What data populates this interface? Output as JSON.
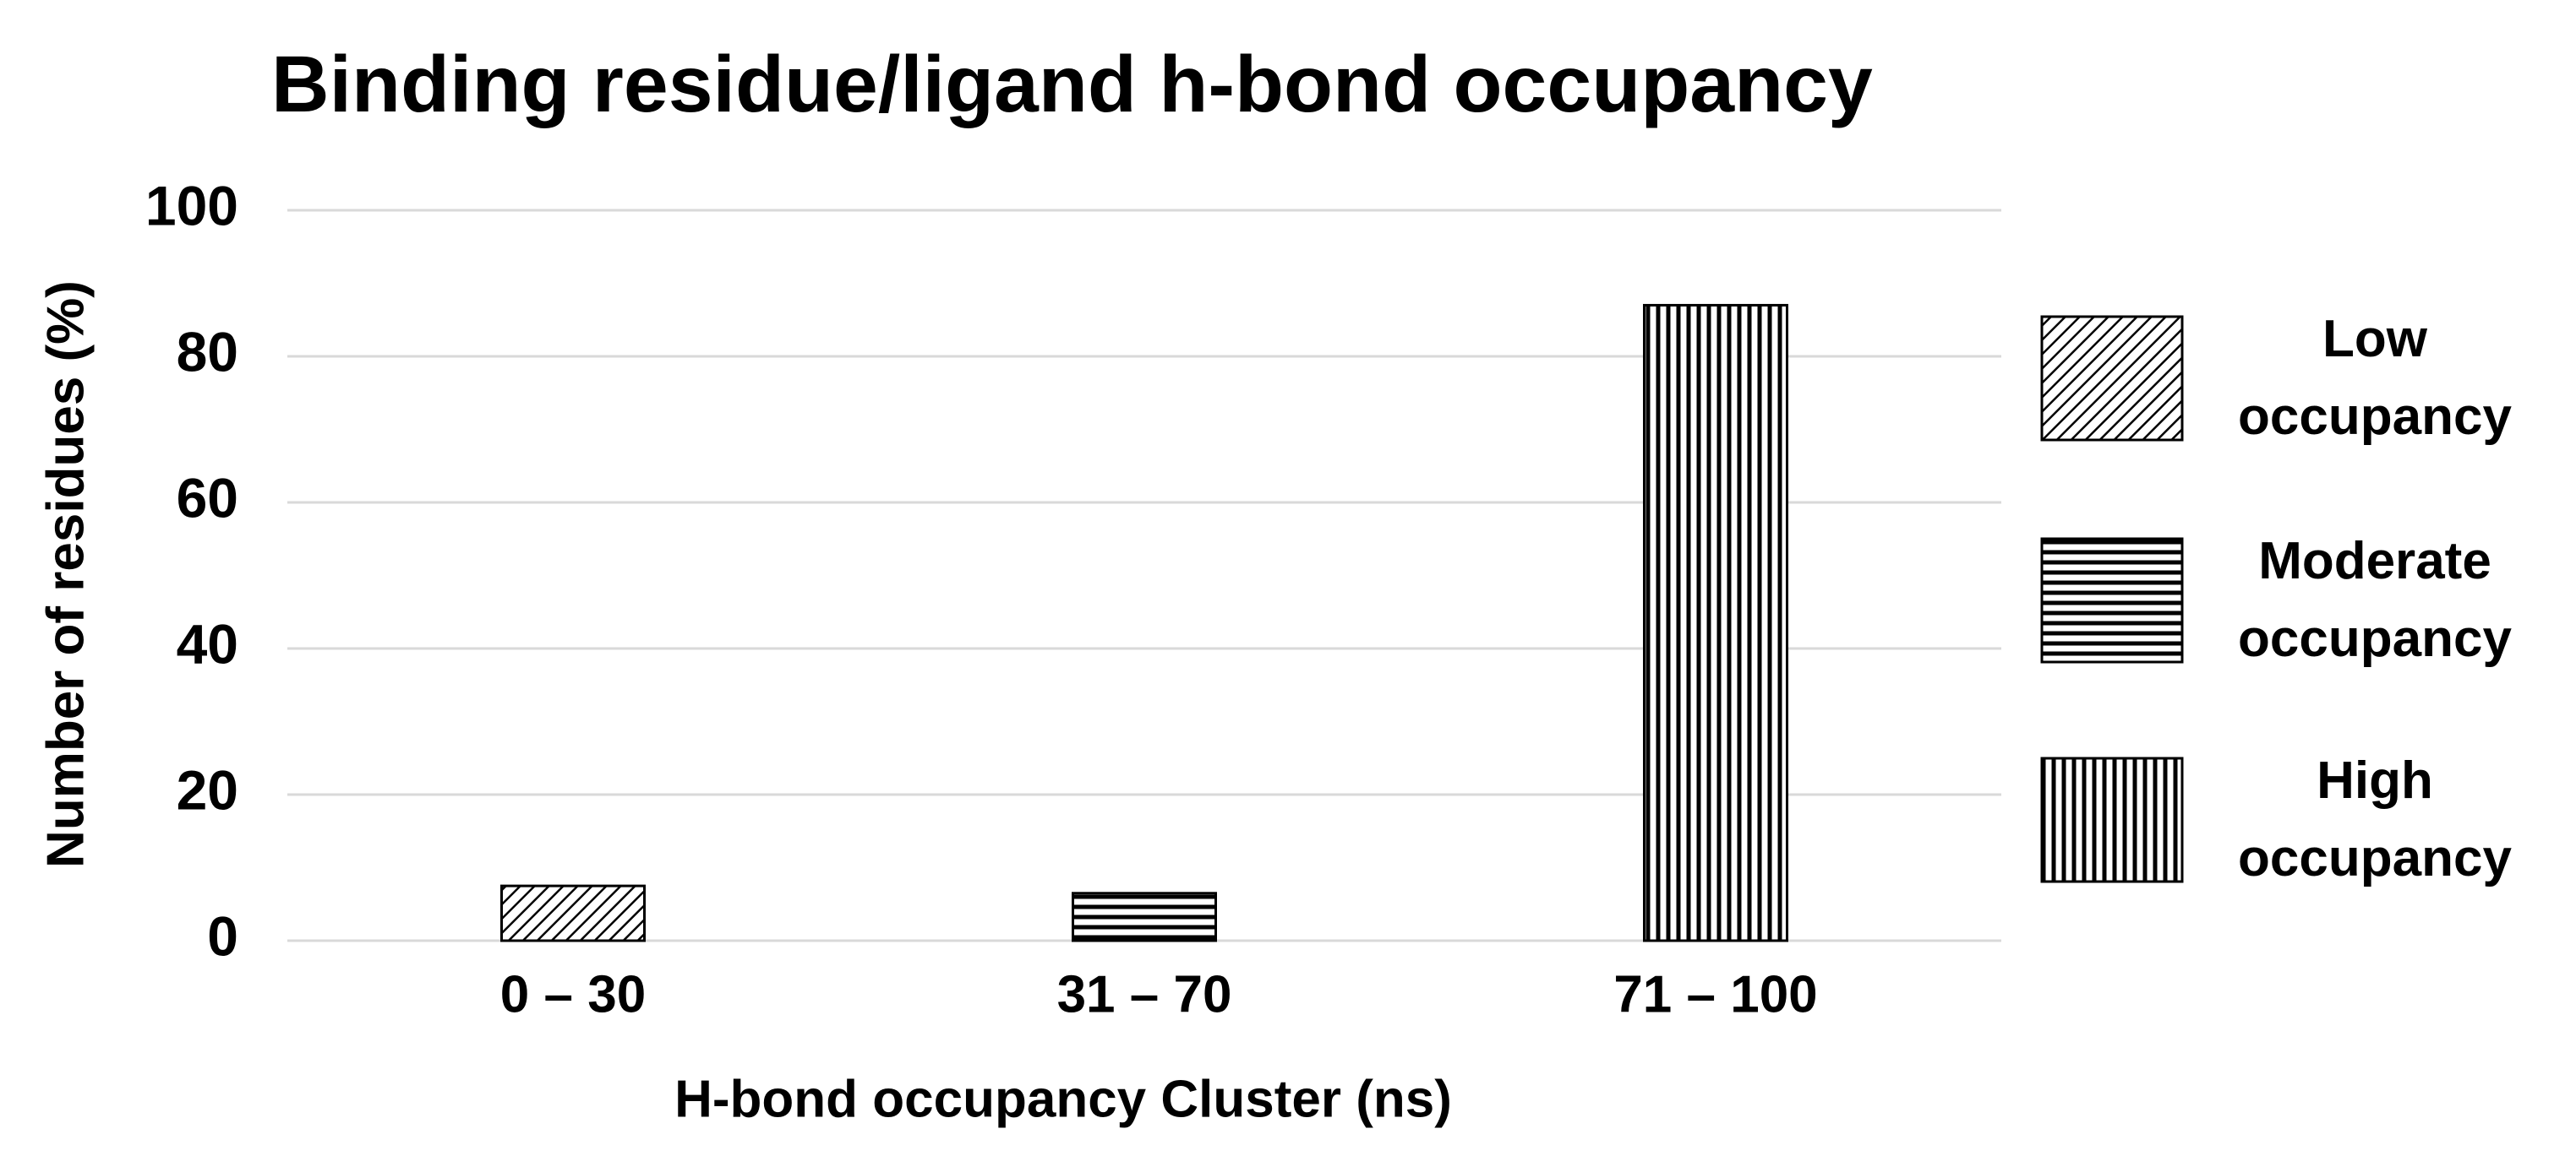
{
  "chart_data": {
    "type": "bar",
    "title": "Binding residue/ligand h-bond occupancy",
    "x_label": "H-bond occupancy Cluster (ns)",
    "y_label": "Number of residues (%)",
    "categories": [
      "0 – 30",
      "31 – 70",
      "71 – 100"
    ],
    "series": [
      {
        "name": "Low occupancy",
        "color": "#000000",
        "pattern": "diagonal",
        "values": [
          7.5,
          null,
          null
        ]
      },
      {
        "name": "Moderate occupancy",
        "color": "#000000",
        "pattern": "horizontal",
        "values": [
          null,
          6.5,
          null
        ]
      },
      {
        "name": "High occupancy",
        "color": "#000000",
        "pattern": "vertical",
        "values": [
          null,
          null,
          87
        ]
      }
    ],
    "ylim": [
      0,
      100
    ],
    "yticks": [
      0,
      20,
      40,
      60,
      80,
      100
    ],
    "grid": true,
    "legend": "right"
  }
}
